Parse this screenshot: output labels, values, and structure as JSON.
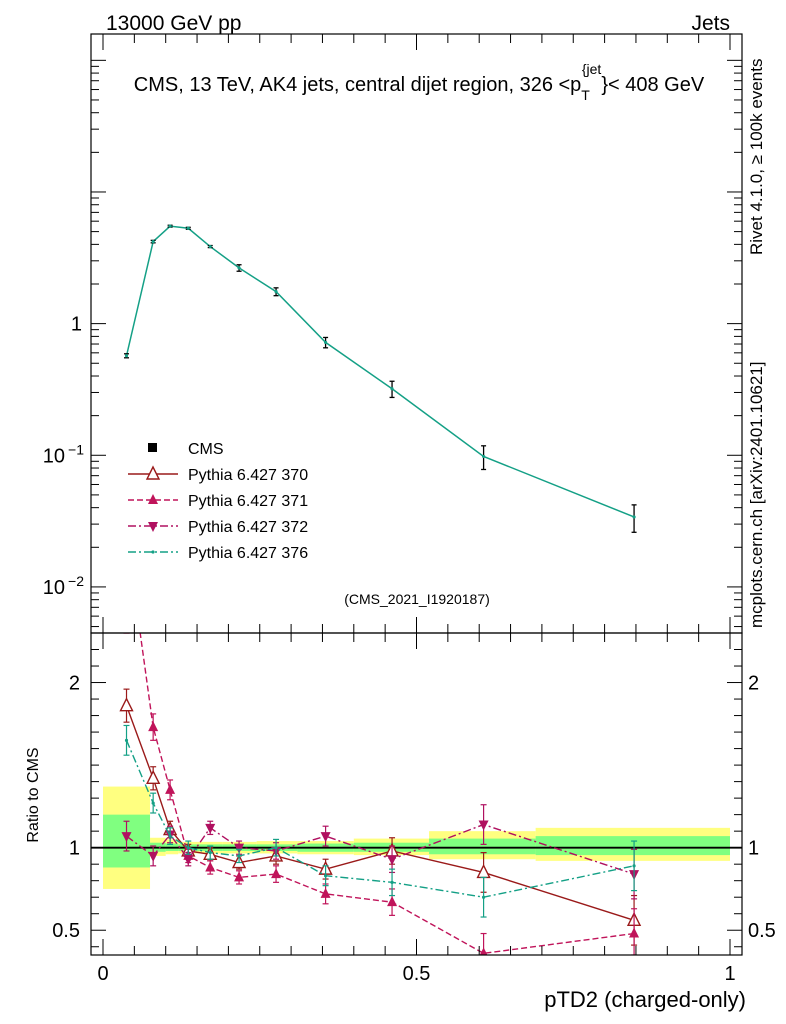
{
  "header": {
    "left": "13000 GeV pp",
    "right": "Jets"
  },
  "chart_data": {
    "type": "line",
    "title": "CMS, 13 TeV, AK4 jets, central dijet region, 326 <p_T^{jet}< 408 GeV",
    "title_main": "CMS, 13 TeV, AK4 jets, central dijet region, 326 <p",
    "title_sup": "{jet",
    "title_sub": "T",
    "title_end": "}< 408 GeV",
    "analysis_id": "(CMS_2021_I1920187)",
    "side_label_top": "Rivet 4.1.0, ≥ 100k events",
    "side_label_bottom": "mcplots.cern.ch [arXiv:2401.10621]",
    "xlabel": "pTD2 (charged-only)",
    "ratio_ylabel": "Ratio to CMS",
    "xlim": [
      0,
      1
    ],
    "main_ylim_log10": [
      -2.35,
      2.2
    ],
    "ratio_ylim": [
      0.35,
      2.3
    ],
    "x_ticks": [
      {
        "v": 0,
        "label": "0"
      },
      {
        "v": 0.5,
        "label": "0.5"
      },
      {
        "v": 1,
        "label": "1"
      }
    ],
    "main_y_ticks": [
      {
        "v": 1,
        "label": "1"
      },
      {
        "v": 0.1,
        "label": "10",
        "exp": "−1"
      },
      {
        "v": 0.01,
        "label": "10",
        "exp": "−2"
      }
    ],
    "ratio_y_ticks": [
      {
        "v": 0.5,
        "label": "0.5"
      },
      {
        "v": 1,
        "label": "1"
      },
      {
        "v": 2,
        "label": "2"
      }
    ],
    "x": [
      0.0375,
      0.08,
      0.107,
      0.136,
      0.171,
      0.217,
      0.276,
      0.355,
      0.461,
      0.607,
      0.847
    ],
    "data": {
      "name": "CMS",
      "values": [
        0.57,
        4.2,
        5.5,
        5.3,
        3.85,
        2.65,
        1.75,
        0.72,
        0.32,
        0.098,
        0.034
      ],
      "err": [
        0.02,
        0.09,
        0.09,
        0.09,
        0.07,
        0.15,
        0.12,
        0.065,
        0.045,
        0.02,
        0.008
      ]
    },
    "series": [
      {
        "name": "Pythia 6.427 370",
        "color": "#9a1a1a",
        "dash": "",
        "marker": "open-triangle-up",
        "ratio": [
          1.86,
          1.42,
          1.11,
          0.98,
          0.96,
          0.91,
          0.95,
          0.87,
          0.98,
          0.85,
          0.56
        ],
        "ratio_err": [
          0.1,
          0.07,
          0.05,
          0.04,
          0.04,
          0.04,
          0.05,
          0.06,
          0.08,
          0.12,
          0.15
        ]
      },
      {
        "name": "Pythia 6.427 371",
        "color": "#c0145a",
        "dash": "6,3",
        "marker": "filled-triangle-up",
        "ratio": [
          2.9,
          1.73,
          1.35,
          0.95,
          0.88,
          0.82,
          0.84,
          0.72,
          0.67,
          0.36,
          0.48
        ],
        "ratio_err": [
          0.1,
          0.08,
          0.06,
          0.04,
          0.04,
          0.04,
          0.05,
          0.06,
          0.08,
          0.12,
          0.15
        ]
      },
      {
        "name": "Pythia 6.427 372",
        "color": "#b01060",
        "dash": "8,3,2,3",
        "marker": "filled-triangle-down",
        "ratio": [
          1.07,
          0.95,
          1.08,
          0.93,
          1.12,
          1.0,
          0.98,
          1.07,
          0.93,
          1.14,
          0.84
        ],
        "ratio_err": [
          0.09,
          0.06,
          0.05,
          0.04,
          0.04,
          0.04,
          0.05,
          0.06,
          0.08,
          0.12,
          0.15
        ]
      },
      {
        "name": "Pythia 6.427 376",
        "color": "#14a086",
        "dash": "8,3,2,3",
        "marker": "dot",
        "ratio": [
          1.65,
          1.27,
          1.07,
          1.0,
          0.97,
          0.95,
          1.0,
          0.83,
          0.79,
          0.7,
          0.89
        ],
        "ratio_err": [
          0.09,
          0.06,
          0.05,
          0.04,
          0.04,
          0.04,
          0.05,
          0.06,
          0.08,
          0.12,
          0.15
        ]
      }
    ],
    "uncertainty_bands": {
      "edges": [
        0,
        0.075,
        0.1,
        0.12,
        0.15,
        0.19,
        0.245,
        0.31,
        0.4,
        0.52,
        0.69,
        1.0
      ],
      "yellow": [
        [
          0.75,
          1.37
        ],
        [
          0.95,
          1.06
        ],
        [
          0.96,
          1.05
        ],
        [
          0.965,
          1.035
        ],
        [
          0.965,
          1.035
        ],
        [
          0.965,
          1.035
        ],
        [
          0.965,
          1.04
        ],
        [
          0.96,
          1.04
        ],
        [
          0.955,
          1.055
        ],
        [
          0.93,
          1.1
        ],
        [
          0.92,
          1.12
        ]
      ],
      "green": [
        [
          0.88,
          1.2
        ],
        [
          0.975,
          1.03
        ],
        [
          0.98,
          1.025
        ],
        [
          0.98,
          1.02
        ],
        [
          0.98,
          1.02
        ],
        [
          0.98,
          1.02
        ],
        [
          0.98,
          1.02
        ],
        [
          0.975,
          1.025
        ],
        [
          0.975,
          1.03
        ],
        [
          0.96,
          1.055
        ],
        [
          0.955,
          1.07
        ]
      ]
    },
    "legend": {
      "placement": "lower-left"
    }
  },
  "colors": {
    "yellow_band": "#ffff80",
    "green_band": "#80ff80",
    "data_marker": "#000000"
  }
}
